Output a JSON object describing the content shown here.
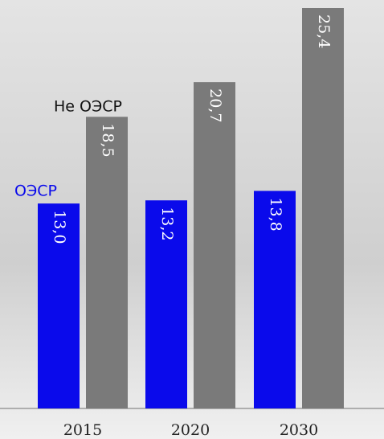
{
  "chart_data": {
    "type": "bar",
    "categories": [
      "2015",
      "2020",
      "2030"
    ],
    "series": [
      {
        "name": "ОЭСР",
        "color": "#0a0aeb",
        "values": [
          13.0,
          13.2,
          13.8
        ],
        "value_labels": [
          "13,0",
          "13,2",
          "13,8"
        ]
      },
      {
        "name": "Не ОЭСР",
        "color": "#7a7a7a",
        "values": [
          18.5,
          20.7,
          25.4
        ],
        "value_labels": [
          "18,5",
          "20,7",
          "25,4"
        ]
      }
    ]
  }
}
